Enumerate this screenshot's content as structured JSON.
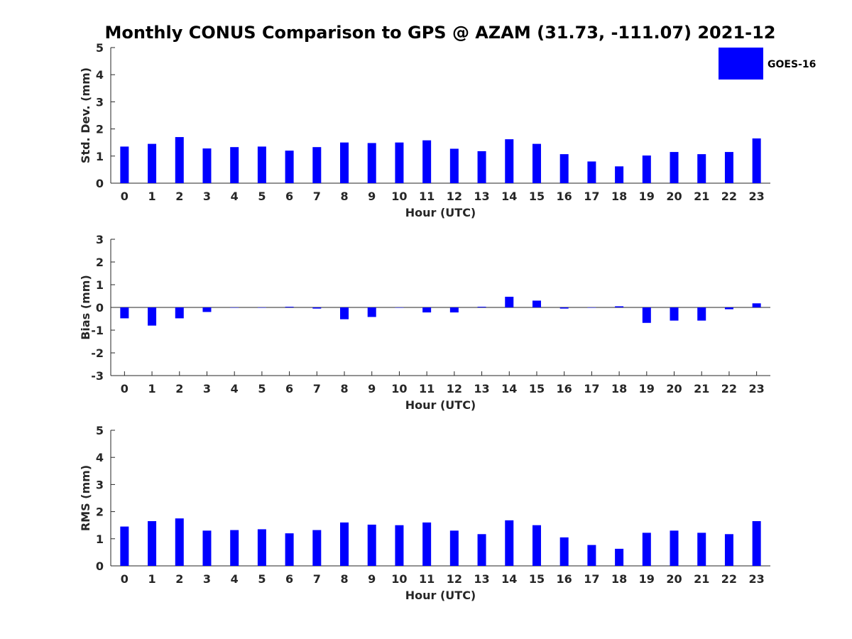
{
  "title": "Monthly CONUS Comparison to GPS @ AZAM (31.73, -111.07) 2021-12",
  "legend": {
    "label": "GOES-16",
    "color": "#0000ff",
    "placement": "top-right"
  },
  "chart_data": [
    {
      "type": "bar",
      "xlabel": "Hour (UTC)",
      "ylabel": "Std. Dev. (mm)",
      "ylim": [
        0,
        5
      ],
      "yticks": [
        0,
        1,
        2,
        3,
        4,
        5
      ],
      "categories": [
        "0",
        "1",
        "2",
        "3",
        "4",
        "5",
        "6",
        "7",
        "8",
        "9",
        "10",
        "11",
        "12",
        "13",
        "14",
        "15",
        "16",
        "17",
        "18",
        "19",
        "20",
        "21",
        "22",
        "23"
      ],
      "series": [
        {
          "name": "GOES-16",
          "values": [
            1.35,
            1.45,
            1.7,
            1.28,
            1.33,
            1.35,
            1.2,
            1.33,
            1.5,
            1.48,
            1.5,
            1.58,
            1.27,
            1.18,
            1.62,
            1.45,
            1.07,
            0.8,
            0.62,
            1.02,
            1.15,
            1.07,
            1.15,
            1.65
          ]
        }
      ],
      "grid": false
    },
    {
      "type": "bar",
      "xlabel": "Hour (UTC)",
      "ylabel": "Bias (mm)",
      "ylim": [
        -3,
        3
      ],
      "yticks": [
        -3,
        -2,
        -1,
        0,
        1,
        2,
        3
      ],
      "categories": [
        "0",
        "1",
        "2",
        "3",
        "4",
        "5",
        "6",
        "7",
        "8",
        "9",
        "10",
        "11",
        "12",
        "13",
        "14",
        "15",
        "16",
        "17",
        "18",
        "19",
        "20",
        "21",
        "22",
        "23"
      ],
      "series": [
        {
          "name": "GOES-16",
          "values": [
            -0.48,
            -0.8,
            -0.48,
            -0.2,
            0,
            0,
            0.03,
            -0.05,
            -0.52,
            -0.42,
            0,
            -0.22,
            -0.22,
            0.03,
            0.47,
            0.3,
            -0.05,
            0,
            0.05,
            -0.68,
            -0.58,
            -0.58,
            -0.08,
            0.18
          ]
        }
      ],
      "grid": false
    },
    {
      "type": "bar",
      "xlabel": "Hour (UTC)",
      "ylabel": "RMS (mm)",
      "ylim": [
        0,
        5
      ],
      "yticks": [
        0,
        1,
        2,
        3,
        4,
        5
      ],
      "categories": [
        "0",
        "1",
        "2",
        "3",
        "4",
        "5",
        "6",
        "7",
        "8",
        "9",
        "10",
        "11",
        "12",
        "13",
        "14",
        "15",
        "16",
        "17",
        "18",
        "19",
        "20",
        "21",
        "22",
        "23"
      ],
      "series": [
        {
          "name": "GOES-16",
          "values": [
            1.45,
            1.65,
            1.75,
            1.3,
            1.32,
            1.35,
            1.2,
            1.32,
            1.6,
            1.52,
            1.5,
            1.6,
            1.3,
            1.17,
            1.68,
            1.5,
            1.05,
            0.77,
            0.63,
            1.22,
            1.3,
            1.22,
            1.17,
            1.65
          ]
        }
      ],
      "grid": false
    }
  ]
}
